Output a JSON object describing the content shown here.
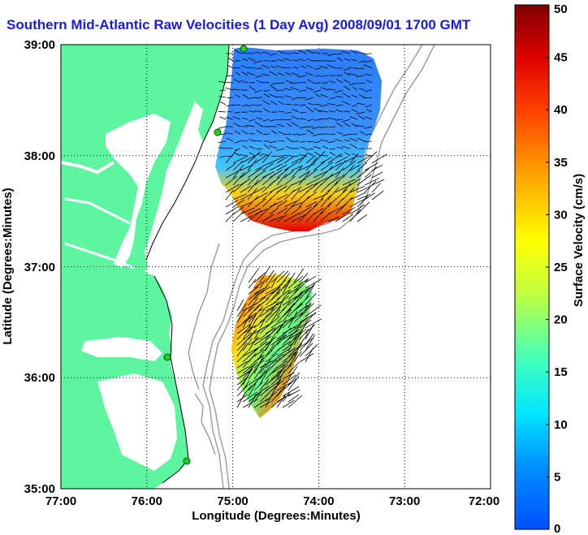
{
  "title": "Southern Mid-Atlantic Raw Velocities (1 Day Avg) 2008/09/01 1700 GMT",
  "map": {
    "x_axis_label": "Longitude (Degrees:Minutes)",
    "y_axis_label": "Latitude (Degrees:Minutes)",
    "x_ticks": [
      "77:00",
      "76:00",
      "75:00",
      "74:00",
      "73:00",
      "72:00"
    ],
    "y_ticks": [
      "39:00",
      "38:00",
      "37:00",
      "36:00",
      "35:00"
    ],
    "land_color": "#5ef5a0",
    "water_color": "#ffffff",
    "grid_style": "dotted",
    "station_color": "#22cc22"
  },
  "colorbar": {
    "label": "Surface Velocity (cm/s)",
    "ticks": [
      "0",
      "5",
      "10",
      "15",
      "20",
      "25",
      "30",
      "35",
      "40",
      "45",
      "50"
    ],
    "min": 0,
    "max": 50,
    "colormap": "jet"
  }
}
